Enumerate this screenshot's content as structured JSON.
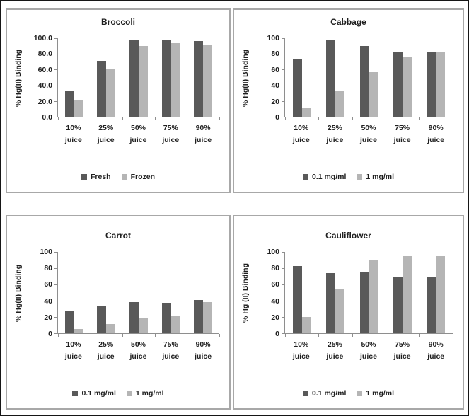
{
  "figure": {
    "background": "#ffffff",
    "outer_border_color": "#161616",
    "panel_border_color": "#a8a8a8",
    "axis_color": "#8e8e8e",
    "text_color": "#1f1f1f",
    "dark_series_color": "#595959",
    "light_series_color": "#b5b5b5"
  },
  "chart_data": [
    {
      "type": "bar",
      "title": "Broccoli",
      "ylabel": "% Hg(II) Binding",
      "xlabel": "",
      "ylim": [
        0,
        100
      ],
      "ytick_step": 20,
      "ytick_labels": [
        "0.0",
        "20.0",
        "40.0",
        "60.0",
        "80.0",
        "100.0"
      ],
      "grid": false,
      "legend_position": "bottom",
      "categories": [
        [
          "10%",
          "juice"
        ],
        [
          "25%",
          "juice"
        ],
        [
          "50%",
          "juice"
        ],
        [
          "75%",
          "juice"
        ],
        [
          "90%",
          "juice"
        ]
      ],
      "series": [
        {
          "name": "Fresh",
          "color": "#595959",
          "values": [
            32,
            71,
            98,
            98,
            96
          ]
        },
        {
          "name": "Frozen",
          "color": "#b5b5b5",
          "values": [
            22,
            60,
            90,
            94,
            92
          ]
        }
      ]
    },
    {
      "type": "bar",
      "title": "Cabbage",
      "ylabel": "% Hg(II) Binding",
      "xlabel": "",
      "ylim": [
        0,
        100
      ],
      "ytick_step": 20,
      "ytick_labels": [
        "0",
        "20",
        "40",
        "60",
        "80",
        "100"
      ],
      "grid": false,
      "legend_position": "bottom",
      "categories": [
        [
          "10%",
          "juice"
        ],
        [
          "25%",
          "juice"
        ],
        [
          "50%",
          "juice"
        ],
        [
          "75%",
          "juice"
        ],
        [
          "90%",
          "juice"
        ]
      ],
      "series": [
        {
          "name": "0.1 mg/ml",
          "color": "#595959",
          "values": [
            74,
            97,
            90,
            83,
            82
          ]
        },
        {
          "name": "1 mg/ml",
          "color": "#b5b5b5",
          "values": [
            11,
            32,
            57,
            76,
            82
          ]
        }
      ]
    },
    {
      "type": "bar",
      "title": "Carrot",
      "ylabel": "% Hg(II) Binding",
      "xlabel": "",
      "ylim": [
        0,
        100
      ],
      "ytick_step": 20,
      "ytick_labels": [
        "0",
        "20",
        "40",
        "60",
        "80",
        "100"
      ],
      "grid": false,
      "legend_position": "bottom",
      "categories": [
        [
          "10%",
          "juice"
        ],
        [
          "25%",
          "juice"
        ],
        [
          "50%",
          "juice"
        ],
        [
          "75%",
          "juice"
        ],
        [
          "90%",
          "juice"
        ]
      ],
      "series": [
        {
          "name": "0.1 mg/ml",
          "color": "#595959",
          "values": [
            28,
            34,
            38,
            37,
            41
          ]
        },
        {
          "name": "1 mg/ml",
          "color": "#b5b5b5",
          "values": [
            5,
            11,
            18,
            22,
            38
          ]
        }
      ]
    },
    {
      "type": "bar",
      "title": "Cauliflower",
      "ylabel": "% Hg (II) Binding",
      "xlabel": "",
      "ylim": [
        0,
        100
      ],
      "ytick_step": 20,
      "ytick_labels": [
        "0",
        "20",
        "40",
        "60",
        "80",
        "100"
      ],
      "grid": false,
      "legend_position": "bottom",
      "categories": [
        [
          "10%",
          "juice"
        ],
        [
          "25%",
          "juice"
        ],
        [
          "50%",
          "juice"
        ],
        [
          "75%",
          "juice"
        ],
        [
          "90%",
          "juice"
        ]
      ],
      "series": [
        {
          "name": "0.1 mg/ml",
          "color": "#595959",
          "values": [
            83,
            74,
            75,
            69,
            69
          ]
        },
        {
          "name": "1 mg/ml",
          "color": "#b5b5b5",
          "values": [
            20,
            54,
            90,
            95,
            95
          ]
        }
      ]
    }
  ]
}
